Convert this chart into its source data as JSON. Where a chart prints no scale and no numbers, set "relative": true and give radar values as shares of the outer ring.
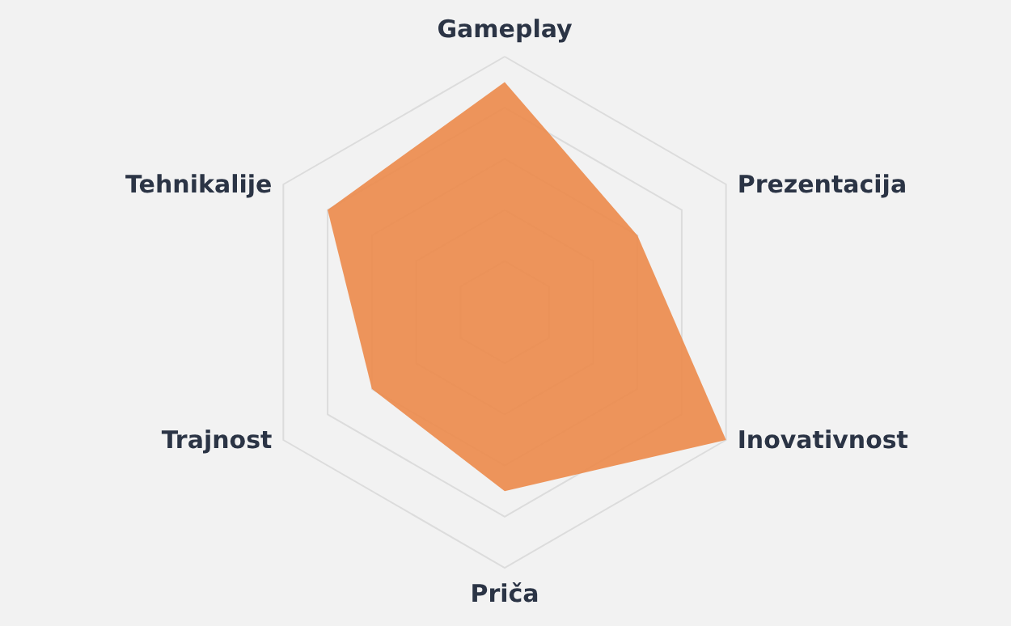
{
  "chart_data": {
    "type": "radar",
    "relative": true,
    "grid": true,
    "categories": [
      "Gameplay",
      "Prezentacija",
      "Inovativnost",
      "Priča",
      "Trajnost",
      "Tehnikalije"
    ],
    "series": [
      {
        "color": "#ec8a4a",
        "values": [
          0.9,
          0.6,
          1.0,
          0.7,
          0.6,
          0.8
        ]
      }
    ]
  }
}
